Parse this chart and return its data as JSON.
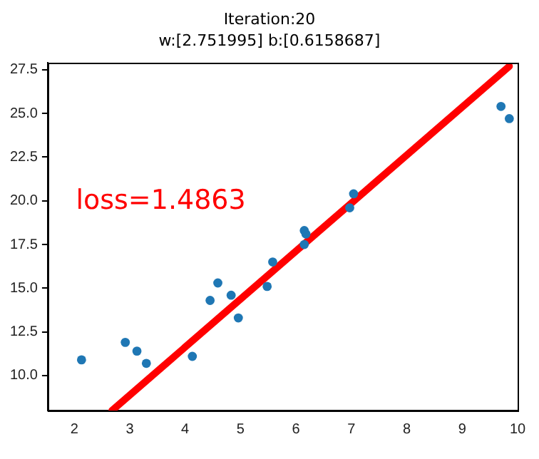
{
  "chart_data": {
    "type": "scatter",
    "title": "Iteration:20",
    "subtitle": "w:[2.751995] b:[0.6158687]",
    "annotations": [
      "loss=1.4863"
    ],
    "xlim": [
      1.52,
      10
    ],
    "xticks": [
      2,
      3,
      4,
      5,
      6,
      7,
      8,
      9,
      10
    ],
    "ylim": [
      8,
      27.9
    ],
    "yticks": [
      {
        "value": 10,
        "label": "10.0"
      },
      {
        "value": 12.5,
        "label": "12.5"
      },
      {
        "value": 15,
        "label": "15.0"
      },
      {
        "value": 17.5,
        "label": "17.5"
      },
      {
        "value": 20,
        "label": "20.0"
      },
      {
        "value": 22.5,
        "label": "22.5"
      },
      {
        "value": 25,
        "label": "25.0"
      },
      {
        "value": 27.5,
        "label": "27.5"
      }
    ],
    "grid": false,
    "legend": false,
    "marker": "circle",
    "series": [
      {
        "type": "scatter",
        "color": "#1f77b4",
        "x": [
          2.13,
          2.92,
          3.13,
          3.3,
          4.13,
          4.45,
          4.59,
          4.83,
          4.96,
          5.48,
          5.58,
          6.15,
          6.18,
          6.15,
          6.97,
          7.04,
          9.7,
          9.85
        ],
        "values": [
          10.9,
          11.9,
          11.4,
          10.7,
          11.1,
          14.3,
          15.3,
          14.6,
          13.3,
          15.1,
          16.5,
          18.3,
          18.1,
          17.5,
          19.6,
          20.4,
          25.4,
          24.7
        ]
      },
      {
        "type": "line",
        "color": "#ff0000",
        "x": [
          2.68,
          9.85
        ],
        "values": [
          8.0,
          27.7
        ],
        "line_style": "solid",
        "marker": "none"
      }
    ]
  }
}
